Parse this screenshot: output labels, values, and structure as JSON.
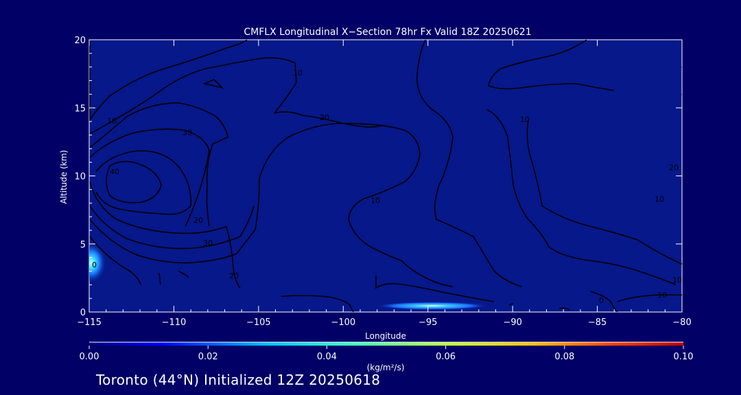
{
  "chart_data": {
    "type": "heatmap",
    "title": "CMFLX Longitudinal X−Section 78hr  Fx Valid 18Z 20250621",
    "xlabel": "Longitude",
    "ylabel": "Altitude (km)",
    "xlim": [
      -115,
      -80
    ],
    "ylim": [
      0,
      20
    ],
    "x_ticks": [
      -115,
      -110,
      -105,
      -100,
      -95,
      -90,
      -85,
      -80
    ],
    "x_tick_labels": [
      "−115",
      "−110",
      "−105",
      "−100",
      "−95",
      "−90",
      "−85",
      "−80"
    ],
    "y_ticks": [
      0,
      5,
      10,
      15,
      20
    ],
    "y_tick_labels": [
      "0",
      "5",
      "10",
      "15",
      "20"
    ],
    "colorbar": {
      "label": "(kg/m²/s)",
      "min": 0.0,
      "max": 0.1,
      "ticks": [
        0.0,
        0.02,
        0.04,
        0.06,
        0.08,
        0.1
      ],
      "tick_labels": [
        "0.00",
        "0.02",
        "0.04",
        "0.06",
        "0.08",
        "0.10"
      ],
      "colormap": [
        "#00007f",
        "#0000ff",
        "#00bfff",
        "#40ffbf",
        "#bfff40",
        "#ffbf00",
        "#ff4000",
        "#bf0000"
      ]
    },
    "fill_features": [
      {
        "name": "flux maximum near -115 at 3-4 km",
        "lon": -115,
        "alt_km": 3.7,
        "value": 0.03
      },
      {
        "name": "low-level flux band",
        "lon_range": [
          -98,
          -92
        ],
        "alt_km": 0.6,
        "value": 0.025
      }
    ],
    "contour_labels": [
      "10",
      "20",
      "30",
      "10",
      "20",
      "40",
      "30",
      "20",
      "10",
      "10",
      "20",
      "10",
      "0",
      "10",
      "10",
      "0",
      "30",
      "10",
      "10"
    ]
  },
  "footer": {
    "text": "Toronto (44°N) Initialized 12Z 20250618"
  },
  "colors": {
    "background": "#000066",
    "plot_background": "#06188a",
    "contour": "#000000",
    "text": "#ffffff"
  }
}
